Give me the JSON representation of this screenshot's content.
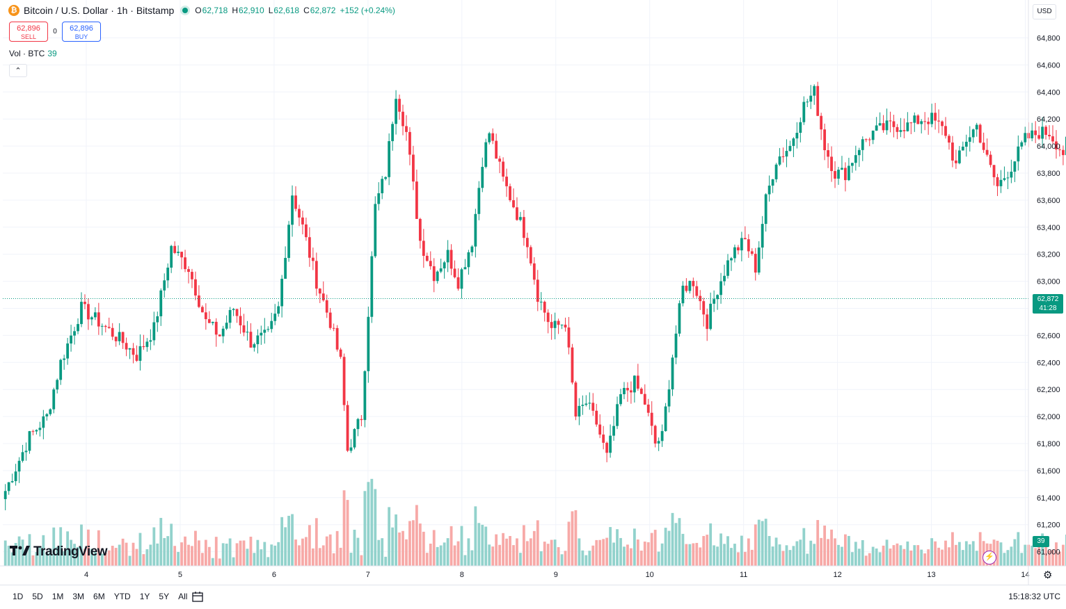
{
  "header": {
    "symbol_title": "Bitcoin / U.S. Dollar · 1h · Bitstamp",
    "symbol_icon": "bitcoin-icon",
    "open_label": "O",
    "open": "62,718",
    "high_label": "H",
    "high": "62,910",
    "low_label": "L",
    "low": "62,618",
    "close_label": "C",
    "close": "62,872",
    "change": "+152 (+0.24%)"
  },
  "trade": {
    "sell_price": "62,896",
    "sell_label": "SELL",
    "spread": "0",
    "buy_price": "62,896",
    "buy_label": "BUY"
  },
  "volume_legend": {
    "label": "Vol · BTC",
    "value": "39"
  },
  "currency": "USD",
  "last_price_tag": {
    "price": "62,872",
    "countdown": "41:28"
  },
  "volume_tag": "39",
  "logo_text": "TradingView",
  "bottom_bar": {
    "ranges": [
      "1D",
      "5D",
      "1M",
      "3M",
      "6M",
      "YTD",
      "1Y",
      "5Y",
      "All"
    ],
    "clock": "15:18:32 UTC"
  },
  "colors": {
    "up": "#089981",
    "down": "#f23645",
    "up_volume": "#92d2cc",
    "down_volume": "#f7a9a7",
    "grid": "#f0f3fa"
  },
  "chart_data": {
    "type": "candlestick",
    "title": "Bitcoin / U.S. Dollar · 1h · Bitstamp",
    "timeframe": "1h",
    "ylim": [
      60900,
      64900
    ],
    "y_ticks": [
      "64,800",
      "64,600",
      "64,400",
      "64,200",
      "64,000",
      "63,800",
      "63,600",
      "63,400",
      "63,200",
      "63,000",
      "62,800",
      "62,600",
      "62,400",
      "62,200",
      "62,000",
      "61,800",
      "61,600",
      "61,400",
      "61,200",
      "61,000"
    ],
    "x_ticks": [
      "4",
      "5",
      "6",
      "7",
      "8",
      "9",
      "10",
      "11",
      "12",
      "13",
      "14"
    ],
    "last_price": 62872,
    "legend": "top-left",
    "grid": true,
    "anchors": [
      [
        0,
        61450
      ],
      [
        7,
        61850
      ],
      [
        12,
        62000
      ],
      [
        16,
        62400
      ],
      [
        22,
        62800
      ],
      [
        27,
        62700
      ],
      [
        34,
        62550
      ],
      [
        38,
        62450
      ],
      [
        43,
        62650
      ],
      [
        48,
        63250
      ],
      [
        53,
        63100
      ],
      [
        58,
        62700
      ],
      [
        62,
        62600
      ],
      [
        66,
        62800
      ],
      [
        71,
        62550
      ],
      [
        76,
        62600
      ],
      [
        79,
        62800
      ],
      [
        83,
        63650
      ],
      [
        86,
        63400
      ],
      [
        90,
        63000
      ],
      [
        94,
        62700
      ],
      [
        97,
        62400
      ],
      [
        99,
        61750
      ],
      [
        103,
        62000
      ],
      [
        107,
        63550
      ],
      [
        110,
        63800
      ],
      [
        113,
        64400
      ],
      [
        116,
        64100
      ],
      [
        120,
        63300
      ],
      [
        124,
        63050
      ],
      [
        128,
        63200
      ],
      [
        131,
        63000
      ],
      [
        135,
        63300
      ],
      [
        138,
        63900
      ],
      [
        140,
        64100
      ],
      [
        144,
        63750
      ],
      [
        148,
        63500
      ],
      [
        151,
        63300
      ],
      [
        154,
        62900
      ],
      [
        158,
        62650
      ],
      [
        162,
        62700
      ],
      [
        165,
        62000
      ],
      [
        168,
        62100
      ],
      [
        171,
        61950
      ],
      [
        174,
        61700
      ],
      [
        178,
        62150
      ],
      [
        182,
        62250
      ],
      [
        185,
        62100
      ],
      [
        188,
        61800
      ],
      [
        190,
        61850
      ],
      [
        193,
        62450
      ],
      [
        196,
        62950
      ],
      [
        199,
        63000
      ],
      [
        203,
        62700
      ],
      [
        206,
        62950
      ],
      [
        210,
        63200
      ],
      [
        214,
        63300
      ],
      [
        217,
        63100
      ],
      [
        220,
        63600
      ],
      [
        223,
        63900
      ],
      [
        227,
        64000
      ],
      [
        231,
        64300
      ],
      [
        234,
        64400
      ],
      [
        237,
        64000
      ],
      [
        240,
        63800
      ],
      [
        243,
        63800
      ],
      [
        247,
        64000
      ],
      [
        251,
        64100
      ],
      [
        256,
        64150
      ],
      [
        261,
        64150
      ],
      [
        265,
        64200
      ],
      [
        268,
        64200
      ],
      [
        272,
        64100
      ],
      [
        275,
        63850
      ],
      [
        278,
        64050
      ],
      [
        281,
        64150
      ],
      [
        284,
        63900
      ],
      [
        287,
        63700
      ],
      [
        291,
        63850
      ],
      [
        295,
        64050
      ],
      [
        299,
        64100
      ],
      [
        302,
        64100
      ],
      [
        306,
        63950
      ],
      [
        309,
        64150
      ],
      [
        312,
        64050
      ],
      [
        315,
        63750
      ],
      [
        319,
        63400
      ],
      [
        322,
        62800
      ],
      [
        326,
        62750
      ],
      [
        329,
        62850
      ],
      [
        332,
        63000
      ],
      [
        335,
        62800
      ],
      [
        337,
        62650
      ],
      [
        339,
        62250
      ],
      [
        342,
        62872
      ]
    ],
    "volume_pattern": "hourly bars, colored by candle direction; spikes near 6-7 and 12-13",
    "current_volume": 39
  }
}
